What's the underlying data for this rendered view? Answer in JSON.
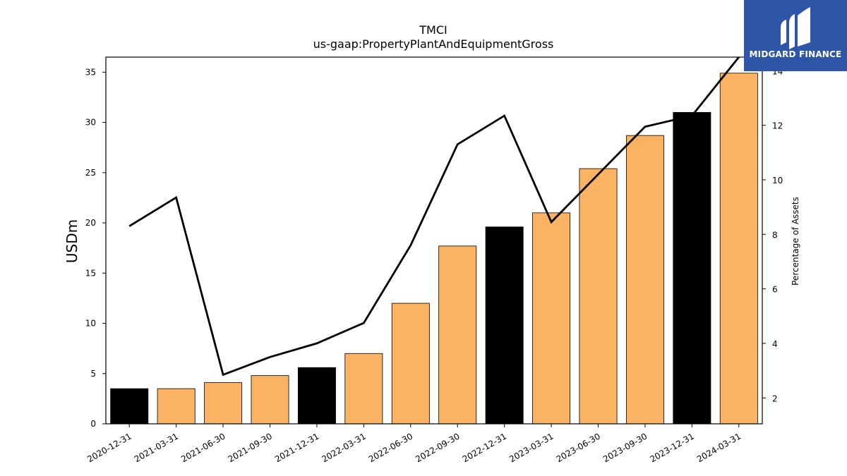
{
  "chart_data": {
    "type": "bar",
    "title": "TMCI",
    "subtitle": "us-gaap:PropertyPlantAndEquipmentGross",
    "ylabel": "USDm",
    "y2label": "Percentage of Assets",
    "categories": [
      "2020-12-31",
      "2021-03-31",
      "2021-06-30",
      "2021-09-30",
      "2021-12-31",
      "2022-03-31",
      "2022-06-30",
      "2022-09-30",
      "2022-12-31",
      "2023-03-31",
      "2023-06-30",
      "2023-09-30",
      "2023-12-31",
      "2024-03-31"
    ],
    "series": [
      {
        "type": "bar",
        "values": [
          3.5,
          3.5,
          4.1,
          4.8,
          5.6,
          7.0,
          12.0,
          17.7,
          19.6,
          21.0,
          25.4,
          28.7,
          31.0,
          34.9
        ]
      },
      {
        "type": "line",
        "axis": "right",
        "values": [
          8.3,
          9.35,
          2.85,
          3.5,
          4.0,
          4.75,
          7.6,
          11.3,
          12.35,
          8.45,
          10.2,
          11.95,
          12.35,
          14.5
        ]
      }
    ],
    "bar_colors": [
      "#000000",
      "#fbb262",
      "#fbb262",
      "#fbb262",
      "#000000",
      "#fbb262",
      "#fbb262",
      "#fbb262",
      "#000000",
      "#fbb262",
      "#fbb262",
      "#fbb262",
      "#000000",
      "#fbb262"
    ],
    "line_color": "#000000",
    "ylim": [
      0,
      36.5
    ],
    "y2lim": [
      1.05,
      14.5
    ],
    "yticks": [
      0,
      5,
      10,
      15,
      20,
      25,
      30,
      35
    ],
    "y2ticks": [
      2,
      4,
      6,
      8,
      10,
      12,
      14
    ],
    "grid": false
  },
  "logo": {
    "text": "MIDGARD FINANCE",
    "color": "#2d55a8"
  }
}
